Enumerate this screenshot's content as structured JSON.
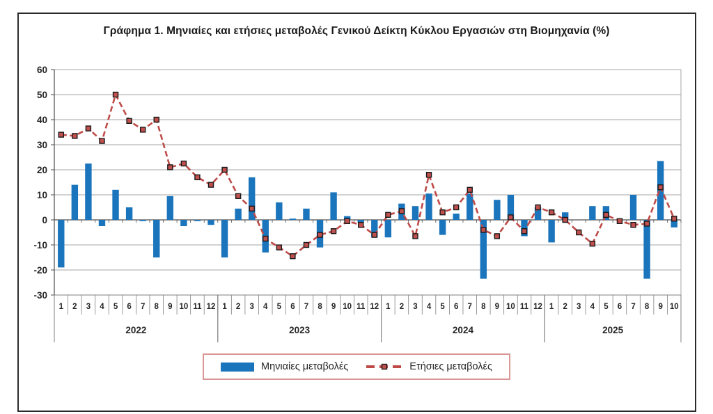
{
  "title": "Γράφημα 1. Μηνιαίες και ετήσιες μεταβολές  Γενικού Δείκτη Κύκλου Εργασιών στη Βιομηχανία (%)",
  "legend": {
    "monthly": "Μηνιαίες μεταβολές",
    "annual": "Ετήσιες μεταβολές"
  },
  "colors": {
    "bar": "#1b75bc",
    "line": "#be4b48",
    "marker_fill": "#c0504d",
    "marker_border": "#1a1a1a",
    "grid": "#a6a6a6",
    "zero_axis": "#4d4d4d",
    "axis": "#7f7f7f",
    "tick_text": "#262626",
    "legend_border": "#d99694",
    "frame_border": "#2b2b2b"
  },
  "chart_data": {
    "type": "combo-bar-line",
    "title": "Γράφημα 1. Μηνιαίες και ετήσιες μεταβολές  Γενικού Δείκτη Κύκλου Εργασιών στη Βιομηχανία (%)",
    "ylim": [
      -30,
      60
    ],
    "ytick_step": 10,
    "yticks": [
      60,
      50,
      40,
      30,
      20,
      10,
      0,
      -10,
      -20,
      -30
    ],
    "grid": true,
    "legend_position": "bottom",
    "years": [
      {
        "label": "2022",
        "months": [
          "1",
          "2",
          "3",
          "4",
          "5",
          "6",
          "7",
          "8",
          "9",
          "10",
          "11",
          "12"
        ]
      },
      {
        "label": "2023",
        "months": [
          "1",
          "2",
          "3",
          "4",
          "5",
          "6",
          "7",
          "8",
          "9",
          "10",
          "11",
          "12"
        ]
      },
      {
        "label": "2024",
        "months": [
          "1",
          "2",
          "3",
          "4",
          "5",
          "6",
          "7",
          "8",
          "9",
          "10",
          "11",
          "12"
        ]
      },
      {
        "label": "2025",
        "months": [
          "1",
          "2",
          "3",
          "4",
          "5",
          "6",
          "7",
          "8",
          "9",
          "10"
        ]
      }
    ],
    "series": [
      {
        "name": "Μηνιαίες μεταβολές",
        "type": "bar",
        "color": "#1b75bc",
        "values": [
          -19,
          14,
          22.5,
          -2.5,
          12,
          5,
          -0.5,
          -15,
          9.5,
          -2.5,
          -0.5,
          -2,
          -15,
          4.5,
          17,
          -13,
          7,
          0.5,
          4.5,
          -11,
          11,
          1.5,
          -1,
          -7,
          -7,
          6.5,
          5.5,
          10.5,
          -6,
          2.5,
          10.5,
          -23.5,
          8,
          10,
          -6.5,
          5,
          -9,
          3,
          0,
          5.5,
          5.5,
          0,
          10,
          -23.5,
          23.5,
          -3
        ]
      },
      {
        "name": "Ετήσιες μεταβολές",
        "type": "line",
        "color": "#be4b48",
        "values": [
          34,
          33.5,
          36.5,
          31.5,
          50,
          39.5,
          36,
          40,
          21,
          22.5,
          17,
          14,
          20,
          9.5,
          4.5,
          -7.5,
          -11,
          -14.5,
          -10,
          -6,
          -4.5,
          -0.5,
          -2,
          -6,
          2,
          3.5,
          -6.5,
          18,
          3,
          5,
          12,
          -4,
          -6.5,
          1,
          -4.5,
          5,
          3,
          0,
          -5,
          -9.5,
          2,
          -0.5,
          -2,
          -1.5,
          13,
          0.5
        ]
      }
    ]
  }
}
